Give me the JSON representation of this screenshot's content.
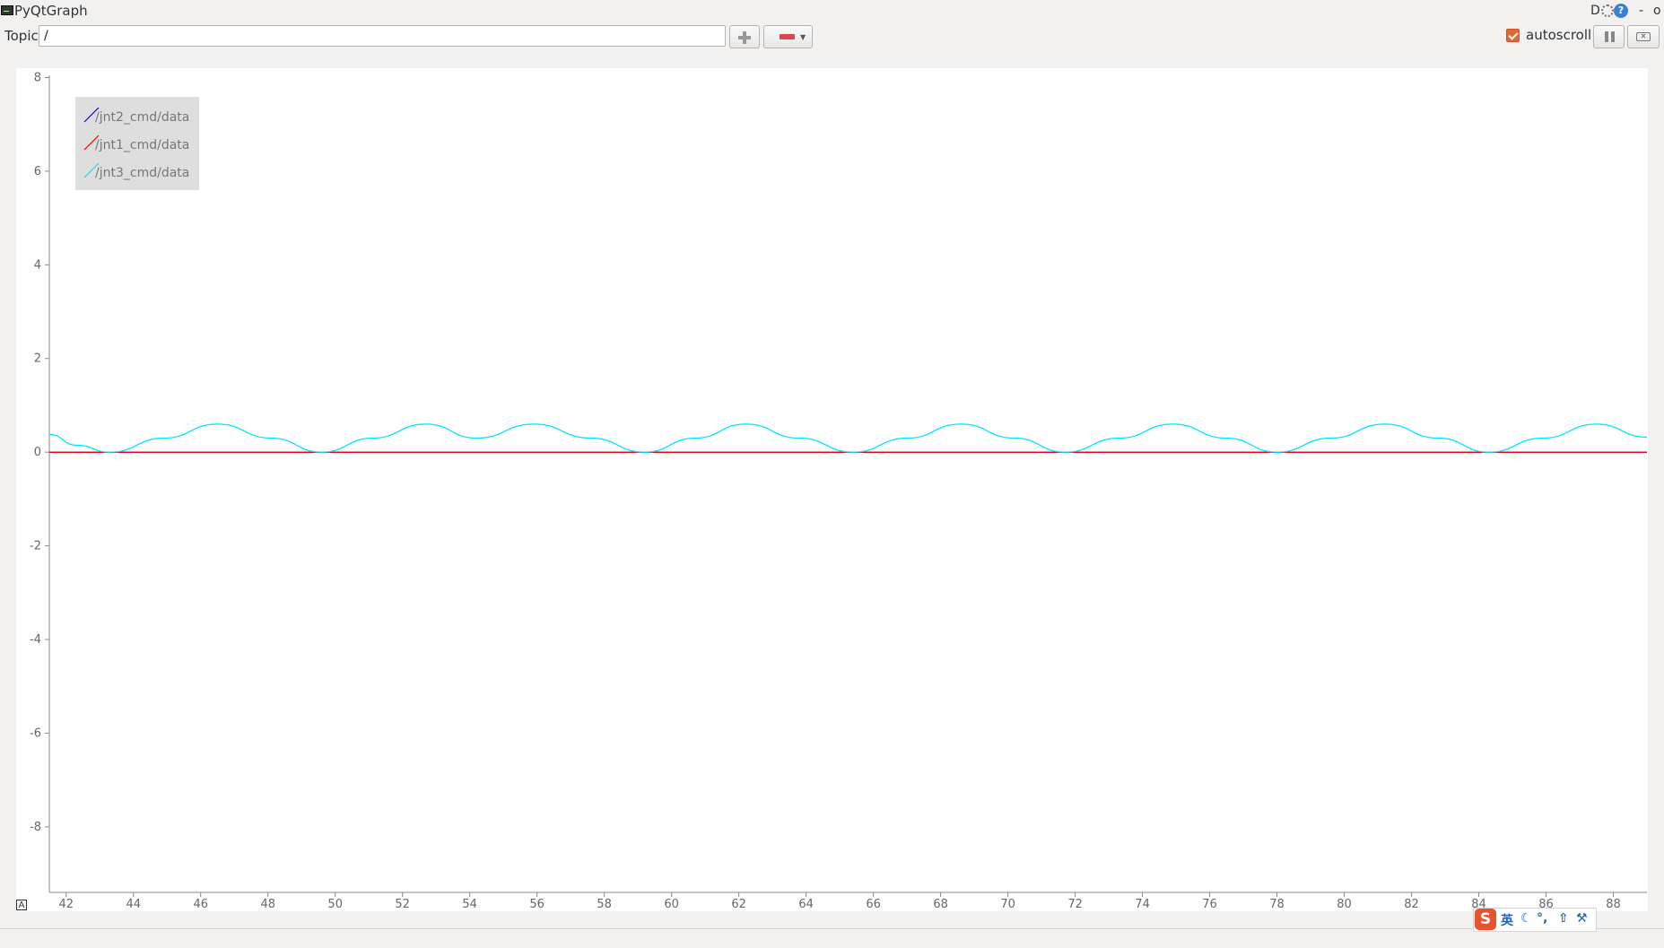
{
  "window": {
    "title": "PyQtGraph",
    "controls": {
      "d_label": "D",
      "minimize": "-",
      "restore": "o",
      "help": "?"
    }
  },
  "toolbar": {
    "topic_label": "Topic",
    "topic_value": "/",
    "add_icon": "plus-icon",
    "remove_icon": "minus-icon",
    "autoscroll_label": "autoscroll",
    "autoscroll_checked": true,
    "pause_icon": "pause-icon",
    "clear_icon": "clear-icon"
  },
  "chart_data": {
    "type": "line",
    "title": "",
    "xlabel": "",
    "ylabel": "",
    "xlim": [
      41.5,
      89.0
    ],
    "ylim": [
      -9.4,
      8.2
    ],
    "xticks": [
      42,
      44,
      46,
      48,
      50,
      52,
      54,
      56,
      58,
      60,
      62,
      64,
      66,
      68,
      70,
      72,
      74,
      76,
      78,
      80,
      82,
      84,
      86,
      88
    ],
    "yticks": [
      8,
      6,
      4,
      2,
      0,
      -2,
      -4,
      -6,
      -8
    ],
    "grid": false,
    "legend_position": "top-left",
    "series": [
      {
        "name": "/jnt2_cmd/data",
        "color": "#0000ff",
        "x": [
          41.5,
          89.0
        ],
        "y": [
          0,
          0
        ]
      },
      {
        "name": "/jnt1_cmd/data",
        "color": "#ff0000",
        "x": [
          41.5,
          89.0
        ],
        "y": [
          0,
          0
        ]
      },
      {
        "name": "/jnt3_cmd/data",
        "color": "#00e5ff",
        "x": [
          41.5,
          42.3,
          43.3,
          44.9,
          46.5,
          48.1,
          49.6,
          51.1,
          52.7,
          54.2,
          55.9,
          57.6,
          59.2,
          60.7,
          62.2,
          63.8,
          65.4,
          67.0,
          68.6,
          70.2,
          71.7,
          73.3,
          74.9,
          76.5,
          78.0,
          79.6,
          81.2,
          82.8,
          84.3,
          85.9,
          87.5,
          89.0
        ],
        "y": [
          0.38,
          0.15,
          0.0,
          0.3,
          0.6,
          0.3,
          0.0,
          0.3,
          0.6,
          0.3,
          0.6,
          0.3,
          0.0,
          0.3,
          0.6,
          0.3,
          0.0,
          0.3,
          0.6,
          0.3,
          0.0,
          0.3,
          0.6,
          0.3,
          0.0,
          0.3,
          0.6,
          0.3,
          0.0,
          0.3,
          0.6,
          0.32
        ]
      }
    ]
  },
  "corner_label": "A",
  "ime": {
    "logo": "S",
    "lang": "英",
    "items": [
      "☾",
      "°,",
      "⇧",
      "⚒"
    ]
  }
}
